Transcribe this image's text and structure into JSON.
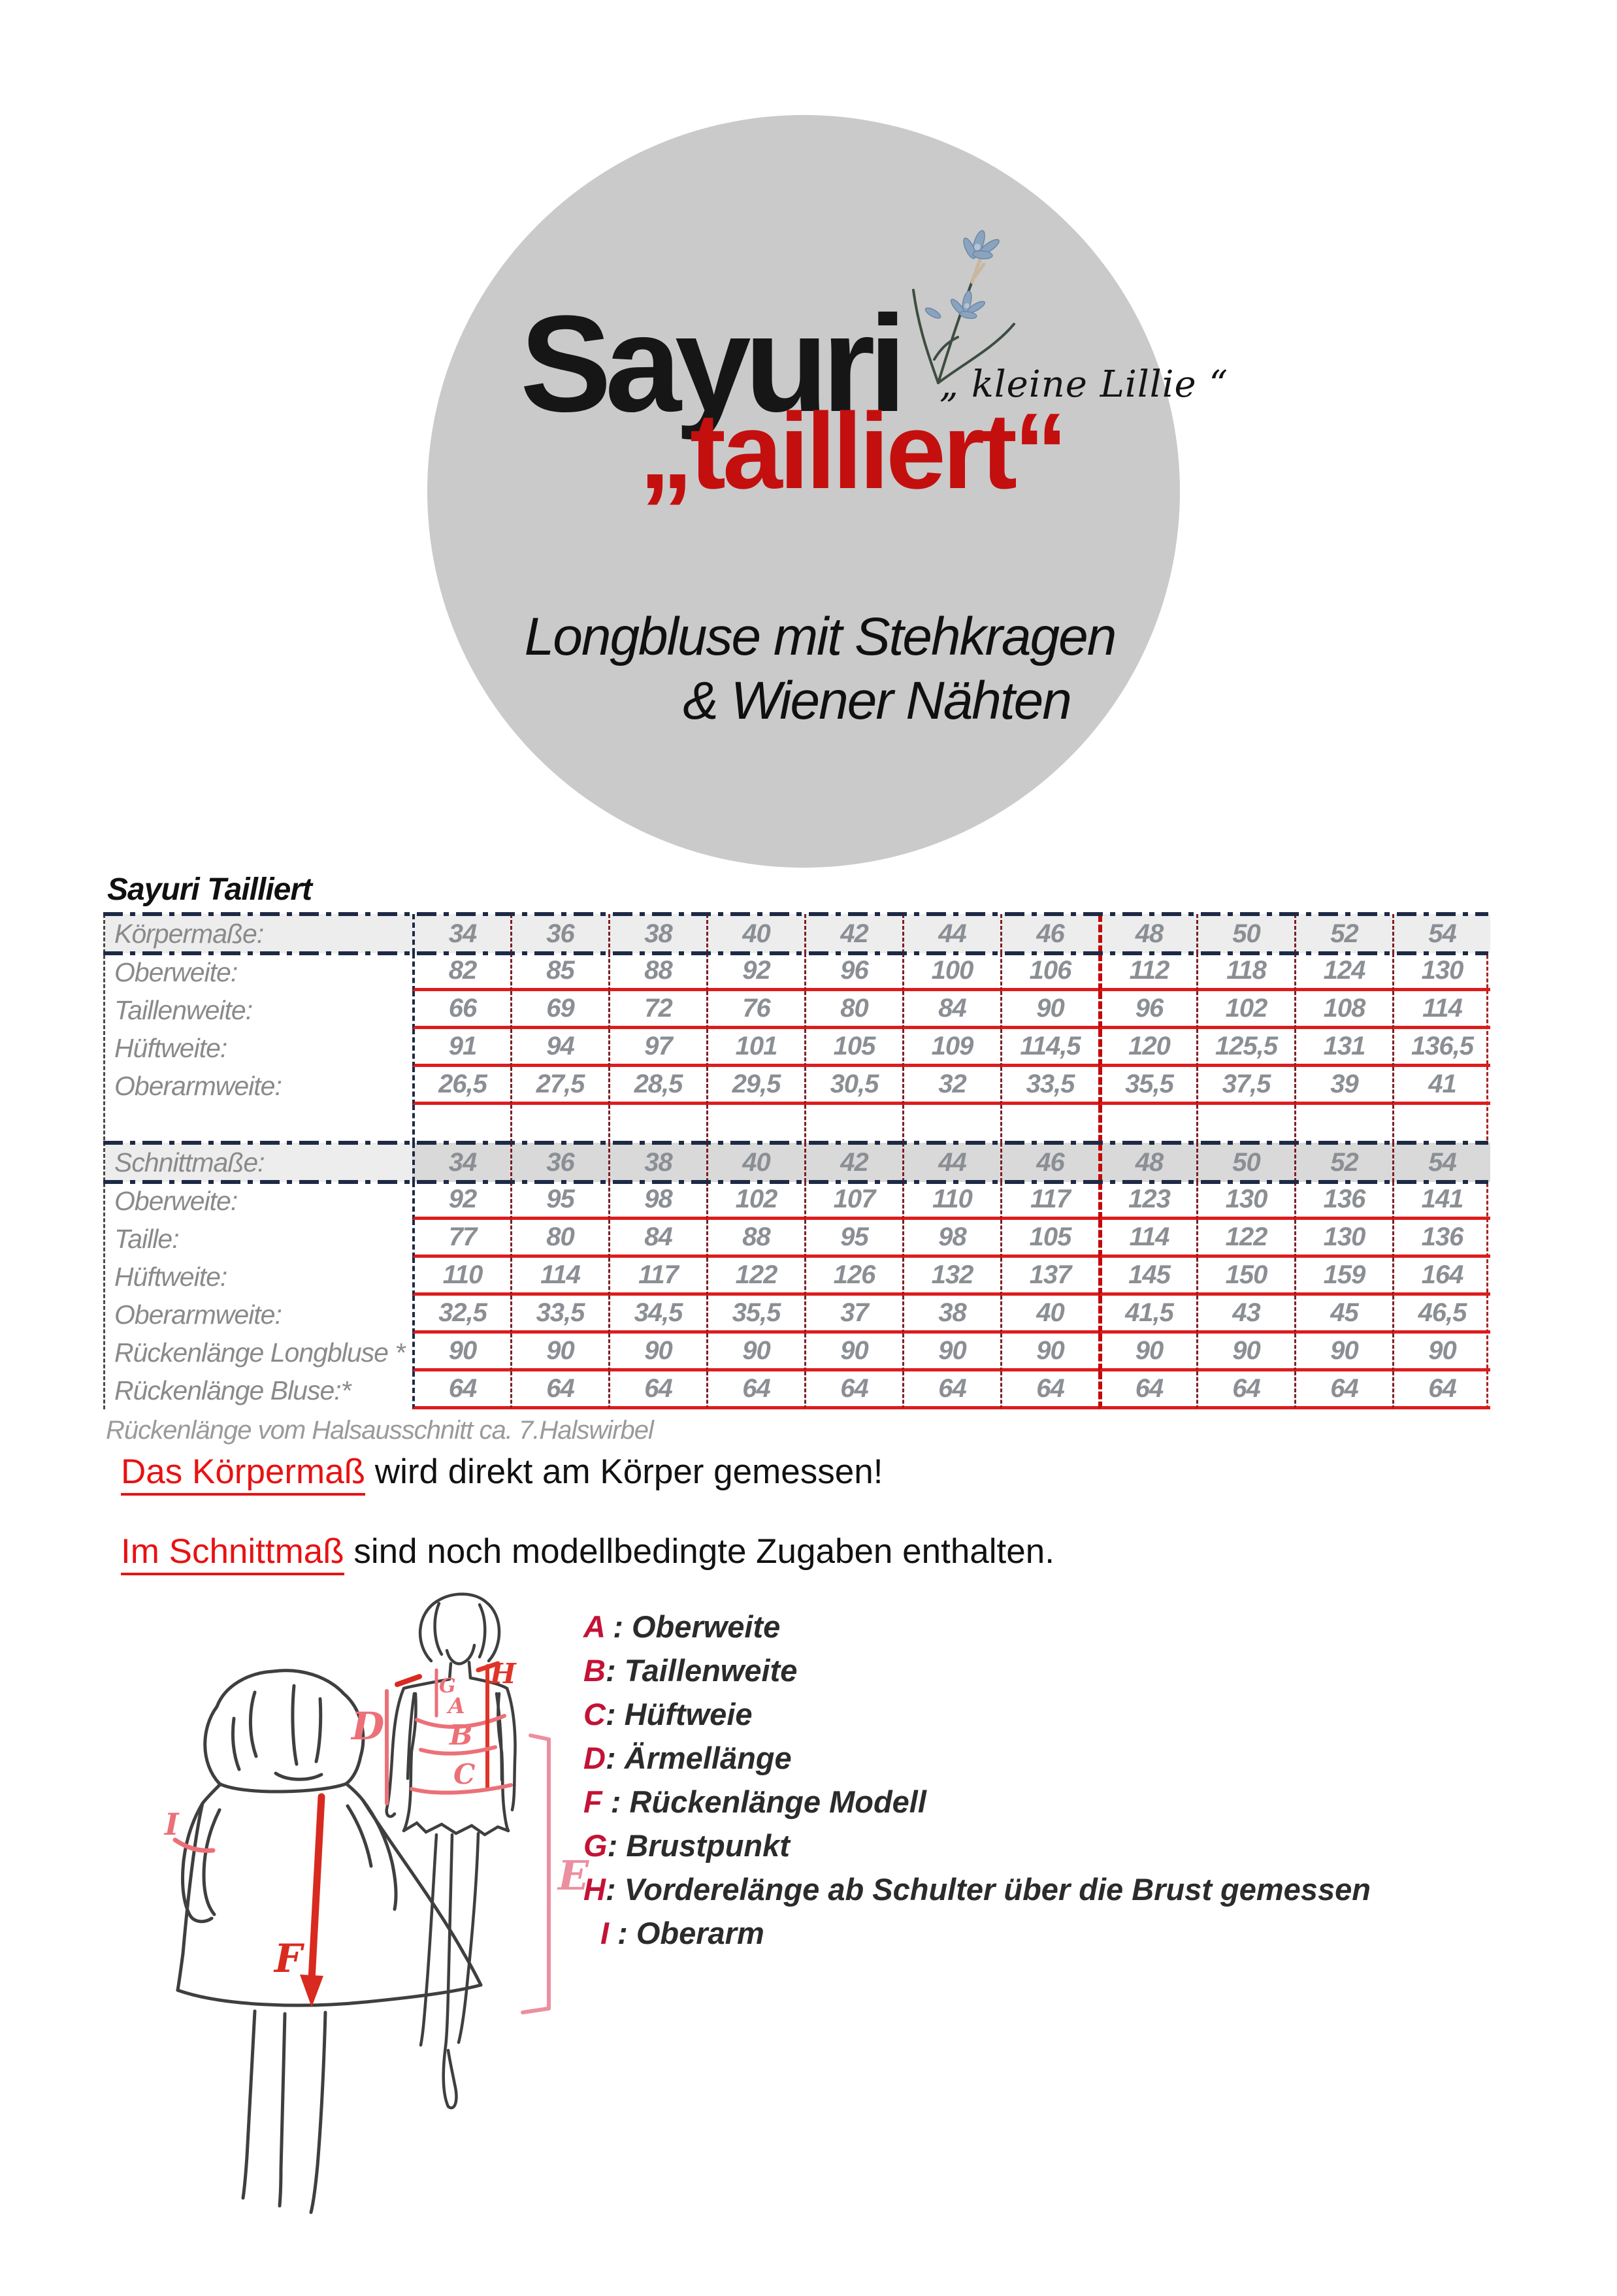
{
  "logo": {
    "brand": "Sayuri",
    "tagline": "„ kleine Lillie “",
    "variant": "„tailliert“",
    "subtitle_line1": "Longbluse mit Stehkragen",
    "subtitle_line2": "& Wiener Nähten",
    "flower_icon": "lily-flower-icon"
  },
  "size_table": {
    "title": "Sayuri Tailliert",
    "sizes": [
      "34",
      "36",
      "38",
      "40",
      "42",
      "44",
      "46",
      "48",
      "50",
      "52",
      "54"
    ],
    "sections": [
      {
        "header": "Körpermaße:",
        "rows": [
          {
            "label": "Oberweite:",
            "values": [
              "82",
              "85",
              "88",
              "92",
              "96",
              "100",
              "106",
              "112",
              "118",
              "124",
              "130"
            ]
          },
          {
            "label": "Taillenweite:",
            "values": [
              "66",
              "69",
              "72",
              "76",
              "80",
              "84",
              "90",
              "96",
              "102",
              "108",
              "114"
            ]
          },
          {
            "label": "Hüftweite:",
            "values": [
              "91",
              "94",
              "97",
              "101",
              "105",
              "109",
              "114,5",
              "120",
              "125,5",
              "131",
              "136,5"
            ]
          },
          {
            "label": "Oberarmweite:",
            "values": [
              "26,5",
              "27,5",
              "28,5",
              "29,5",
              "30,5",
              "32",
              "33,5",
              "35,5",
              "37,5",
              "39",
              "41"
            ]
          }
        ]
      },
      {
        "header": "Schnittmaße:",
        "rows": [
          {
            "label": "Oberweite:",
            "values": [
              "92",
              "95",
              "98",
              "102",
              "107",
              "110",
              "117",
              "123",
              "130",
              "136",
              "141"
            ]
          },
          {
            "label": "Taille:",
            "values": [
              "77",
              "80",
              "84",
              "88",
              "95",
              "98",
              "105",
              "114",
              "122",
              "130",
              "136"
            ]
          },
          {
            "label": "Hüftweite:",
            "values": [
              "110",
              "114",
              "117",
              "122",
              "126",
              "132",
              "137",
              "145",
              "150",
              "159",
              "164"
            ]
          },
          {
            "label": "Oberarmweite:",
            "values": [
              "32,5",
              "33,5",
              "34,5",
              "35,5",
              "37",
              "38",
              "40",
              "41,5",
              "43",
              "45",
              "46,5"
            ]
          },
          {
            "label": "Rückenlänge Longbluse *",
            "values": [
              "90",
              "90",
              "90",
              "90",
              "90",
              "90",
              "90",
              "90",
              "90",
              "90",
              "90"
            ]
          },
          {
            "label": "Rückenlänge Bluse:*",
            "values": [
              "64",
              "64",
              "64",
              "64",
              "64",
              "64",
              "64",
              "64",
              "64",
              "64",
              "64"
            ]
          }
        ]
      }
    ],
    "footnote": "Rückenlänge vom Halsausschnitt ca. 7.Halswirbel"
  },
  "notes": [
    {
      "highlight": "Das Körpermaß",
      "rest": " wird direkt am Körper gemessen!"
    },
    {
      "highlight": "Im Schnittmaß",
      "rest": " sind noch modellbedingte Zugaben enthalten."
    }
  ],
  "legend": [
    {
      "letter": "A",
      "rest": " : Oberweite"
    },
    {
      "letter": "B",
      "rest": ": Taillenweite"
    },
    {
      "letter": "C",
      "rest": ": Hüftweie"
    },
    {
      "letter": "D",
      "rest": ": Ärmellänge"
    },
    {
      "letter": "F",
      "rest": " : Rückenlänge Modell"
    },
    {
      "letter": "G",
      "rest": ": Brustpunkt"
    },
    {
      "letter": "H",
      "rest": ": Vorderelänge ab Schulter über die Brust gemessen"
    },
    {
      "letter": "I",
      "rest": " : Oberarm"
    }
  ],
  "sketch": {
    "labels": {
      "D": "D",
      "G": "G",
      "A": "A",
      "B": "B",
      "C": "C",
      "H": "H",
      "E": "E",
      "F": "F",
      "I": "I"
    }
  },
  "colors": {
    "circle_gray": "#cacaca",
    "accent_red": "#c40f0f",
    "note_red": "#e81212",
    "legend_crimson": "#c41236",
    "table_navy": "#1e2a45",
    "table_red_line": "#de1c1c",
    "table_maroon_sep": "#7c2026",
    "table_text_gray": "#8b8f94",
    "sketch_salmon": "#ec7078",
    "sketch_strong_red": "#d92a1f",
    "sketch_pink": "#ec8fa0",
    "sketch_body": "#3f3f3f"
  }
}
